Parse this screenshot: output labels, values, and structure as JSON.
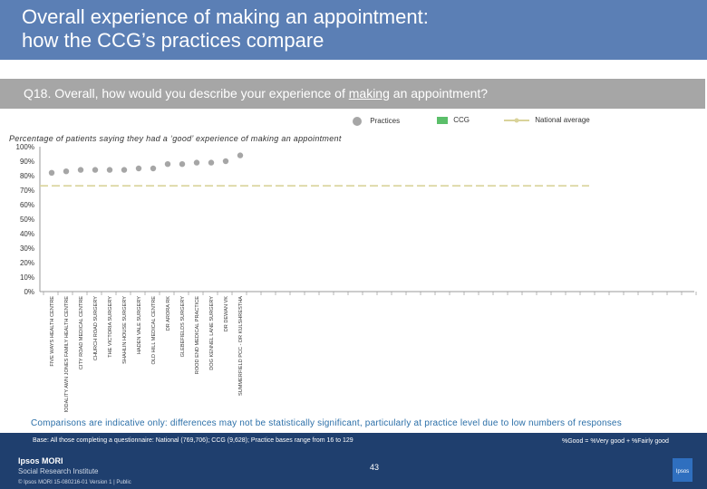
{
  "header": {
    "title_line1": "Overall experience of making an appointment:",
    "title_line2": "how the CCG’s practices compare"
  },
  "question": {
    "text_prefix": "Q18. Overall, how would you describe your experience of ",
    "text_underlined": "making",
    "text_suffix": " an appointment?"
  },
  "legend": {
    "practices": "Practices",
    "ccg": "CCG",
    "national": "National average"
  },
  "colors": {
    "practices": "#a6a6a6",
    "ccg": "#5bbf6a",
    "national": "#d9d39a",
    "header": "#5b7fb5"
  },
  "subtitle": "Percentage of patients saying they had a ‘good’ experience of making an appointment",
  "chart_data": {
    "type": "scatter",
    "categories": [
      "FIVE WAYS HEALTH CENTRE",
      "MODALITY AWN JONES FAMILY HEALTH CENTRE",
      "CITY ROAD MEDICAL CENTRE",
      "CHURCH ROAD SURGERY",
      "THE VICTORIA SURGERY",
      "SHAHLIN HOUSE SURGERY",
      "HADEN VALE SURGERY",
      "OLD HILL MEDICAL CENTRE",
      "DR ARORA RK",
      "GLEBEFIELDS SURGERY",
      "ROOD END MEDICAL PRACTICE",
      "DOG KENNEL LANE SURGERY",
      "DR DEWAN VK",
      "SUMMERFIELD PCC - DR KULSHRESTHA"
    ],
    "series": [
      {
        "name": "Practices",
        "values": [
          82,
          83,
          84,
          84,
          84,
          84,
          85,
          85,
          88,
          88,
          89,
          89,
          90,
          94
        ]
      }
    ],
    "ccg_value": null,
    "national_average": 73,
    "ylim": [
      0,
      100
    ],
    "yticks": [
      "0%",
      "10%",
      "20%",
      "30%",
      "40%",
      "50%",
      "60%",
      "70%",
      "80%",
      "90%",
      "100%"
    ]
  },
  "note": "Comparisons are indicative only: differences may not be statistically significant, particularly at practice level due to low numbers of responses",
  "footer": {
    "base": "Base: All those completing a questionnaire: National (769,706); CCG (9,628); Practice bases range from 16 to 129",
    "definition": "%Good = %Very good + %Fairly good",
    "logo_line1": "Ipsos MORI",
    "logo_line2": "Social Research Institute",
    "page_number": "43",
    "version": "© Ipsos MORI     15-080216-01 Version 1 | Public",
    "badge": "Ipsos"
  }
}
